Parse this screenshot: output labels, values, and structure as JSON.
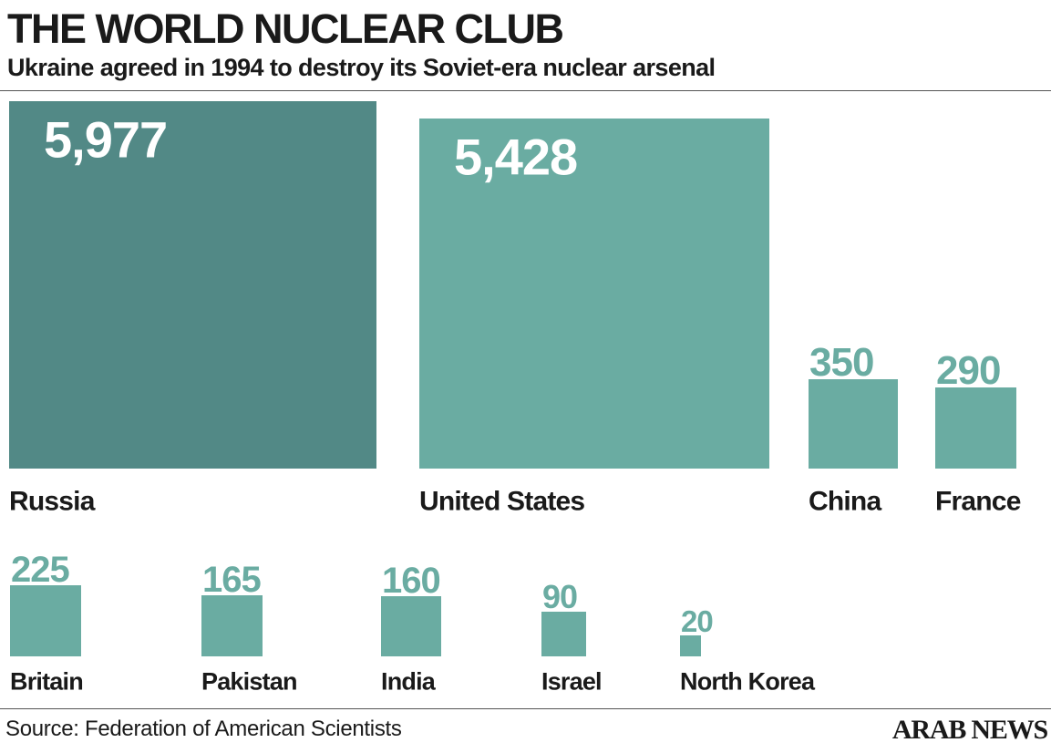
{
  "header": {
    "title": "THE WORLD NUCLEAR CLUB",
    "subtitle": "Ukraine agreed in 1994 to destroy its Soviet-era nuclear arsenal"
  },
  "colors": {
    "russia": "#528986",
    "bar": "#6aaca2",
    "text": "#1a1a1a"
  },
  "chart_data": {
    "type": "bar",
    "unit": "nuclear warheads",
    "categories": [
      "Russia",
      "United States",
      "China",
      "France",
      "Britain",
      "Pakistan",
      "India",
      "Israel",
      "North Korea"
    ],
    "values": [
      5977,
      5428,
      350,
      290,
      225,
      165,
      160,
      90,
      20
    ],
    "value_labels": [
      "5,977",
      "5,428",
      "350",
      "290",
      "225",
      "165",
      "160",
      "90",
      "20"
    ],
    "encoding": "square area proportional to value"
  },
  "footer": {
    "source": "Source: Federation of American Scientists",
    "logo": "ARAB NEWS"
  }
}
